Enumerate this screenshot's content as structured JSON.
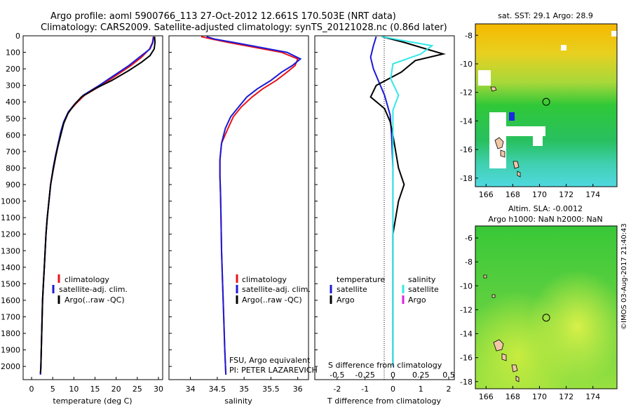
{
  "header": {
    "line1": "Argo profile: aoml 5900766_113 27-Oct-2012 12.661S 170.503E (NRT data)",
    "line2": "Climatology: CARS2009. Satellite-adjusted climatology: synTS_20121028.nc (0.86d later)"
  },
  "colors": {
    "climatology": "#e8141a",
    "satellite": "#1a1ad6",
    "argo": "#000000",
    "sat_salinity": "#33e8e8",
    "argo_salinity": "#e020e0"
  },
  "chart_data": [
    {
      "type": "line",
      "name": "temperature-profile",
      "xlabel": "temperature (deg C)",
      "ylabel": "",
      "xlim": [
        -2,
        31
      ],
      "ylim": [
        2080,
        0
      ],
      "xticks": [
        0,
        5,
        10,
        15,
        20,
        25,
        30
      ],
      "yticks": [
        0,
        100,
        200,
        300,
        400,
        500,
        600,
        700,
        800,
        900,
        1000,
        1100,
        1200,
        1300,
        1400,
        1500,
        1600,
        1700,
        1800,
        1900,
        2000
      ],
      "legend": [
        "climatology",
        "satellite-adj. clim.",
        "Argo(..raw -QC)"
      ],
      "series": [
        {
          "name": "climatology",
          "color": "#e8141a",
          "points": [
            [
              28.8,
              5
            ],
            [
              28.6,
              40
            ],
            [
              27.9,
              80
            ],
            [
              26,
              130
            ],
            [
              23.5,
              180
            ],
            [
              20,
              240
            ],
            [
              16.5,
              300
            ],
            [
              12.5,
              360
            ],
            [
              10.5,
              410
            ],
            [
              8.8,
              460
            ],
            [
              7.7,
              520
            ],
            [
              7,
              580
            ],
            [
              6.3,
              650
            ],
            [
              5.8,
              720
            ],
            [
              5.2,
              800
            ],
            [
              4.5,
              900
            ],
            [
              4.1,
              1000
            ],
            [
              3.7,
              1100
            ],
            [
              3.4,
              1200
            ],
            [
              3.2,
              1300
            ],
            [
              3,
              1400
            ],
            [
              2.8,
              1500
            ],
            [
              2.6,
              1600
            ],
            [
              2.5,
              1700
            ],
            [
              2.4,
              1800
            ],
            [
              2.3,
              1900
            ],
            [
              2.2,
              2000
            ],
            [
              2.1,
              2050
            ]
          ]
        },
        {
          "name": "satellite-adj. clim.",
          "color": "#1a1ad6",
          "points": [
            [
              28.9,
              5
            ],
            [
              28.7,
              40
            ],
            [
              28,
              80
            ],
            [
              25.5,
              130
            ],
            [
              23,
              180
            ],
            [
              19.5,
              240
            ],
            [
              16,
              300
            ],
            [
              12.2,
              360
            ],
            [
              10.3,
              410
            ],
            [
              8.7,
              460
            ],
            [
              7.6,
              520
            ],
            [
              6.9,
              580
            ],
            [
              6.3,
              650
            ],
            [
              5.7,
              720
            ],
            [
              5.1,
              800
            ],
            [
              4.5,
              900
            ],
            [
              4.1,
              1000
            ],
            [
              3.7,
              1100
            ],
            [
              3.4,
              1200
            ],
            [
              3.2,
              1300
            ],
            [
              3,
              1400
            ],
            [
              2.8,
              1500
            ],
            [
              2.6,
              1600
            ],
            [
              2.5,
              1700
            ],
            [
              2.4,
              1800
            ],
            [
              2.3,
              1900
            ],
            [
              2.2,
              2000
            ],
            [
              2.1,
              2050
            ]
          ]
        },
        {
          "name": "Argo(..raw -QC)",
          "color": "#000000",
          "points": [
            [
              29.1,
              5
            ],
            [
              29.2,
              40
            ],
            [
              29,
              80
            ],
            [
              28,
              120
            ],
            [
              26,
              160
            ],
            [
              23,
              210
            ],
            [
              19,
              270
            ],
            [
              15,
              320
            ],
            [
              11.8,
              370
            ],
            [
              10,
              420
            ],
            [
              8.6,
              470
            ],
            [
              7.6,
              530
            ],
            [
              7,
              590
            ],
            [
              6.3,
              660
            ],
            [
              5.7,
              730
            ],
            [
              5.1,
              810
            ],
            [
              4.5,
              900
            ],
            [
              4.1,
              1000
            ],
            [
              3.7,
              1100
            ],
            [
              3.4,
              1200
            ],
            [
              3.2,
              1300
            ],
            [
              3,
              1400
            ],
            [
              2.8,
              1500
            ],
            [
              2.6,
              1600
            ],
            [
              2.5,
              1700
            ],
            [
              2.4,
              1800
            ],
            [
              2.3,
              1900
            ],
            [
              2.2,
              2000
            ],
            [
              2.1,
              2040
            ]
          ]
        }
      ]
    },
    {
      "type": "line",
      "name": "salinity-profile",
      "xlabel": "salinity",
      "xlim": [
        33.6,
        36.2
      ],
      "ylim": [
        2080,
        0
      ],
      "xticks": [
        34,
        34.5,
        35,
        35.5,
        36
      ],
      "legend": [
        "climatology",
        "satellite-adj. clim.",
        "Argo(..raw -QC)"
      ],
      "notes": [
        "FSU, Argo equivalent",
        "PI: PETER LAZAREVICH"
      ],
      "series": [
        {
          "name": "climatology",
          "color": "#e8141a",
          "points": [
            [
              34.2,
              5
            ],
            [
              34.4,
              20
            ],
            [
              34.7,
              40
            ],
            [
              35.2,
              70
            ],
            [
              35.7,
              100
            ],
            [
              36,
              140
            ],
            [
              35.95,
              180
            ],
            [
              35.8,
              220
            ],
            [
              35.6,
              270
            ],
            [
              35.35,
              320
            ],
            [
              35.15,
              370
            ],
            [
              34.95,
              430
            ],
            [
              34.8,
              490
            ],
            [
              34.7,
              560
            ],
            [
              34.58,
              650
            ],
            [
              34.55,
              750
            ],
            [
              34.55,
              850
            ],
            [
              34.56,
              950
            ],
            [
              34.57,
              1100
            ],
            [
              34.58,
              1300
            ],
            [
              34.6,
              1500
            ],
            [
              34.62,
              1700
            ],
            [
              34.64,
              1900
            ],
            [
              34.66,
              2050
            ]
          ]
        },
        {
          "name": "satellite-adj. clim.",
          "color": "#1a1ad6",
          "points": [
            [
              34.3,
              5
            ],
            [
              34.45,
              20
            ],
            [
              34.8,
              40
            ],
            [
              35.3,
              70
            ],
            [
              35.8,
              100
            ],
            [
              36.05,
              140
            ],
            [
              35.9,
              180
            ],
            [
              35.7,
              220
            ],
            [
              35.5,
              270
            ],
            [
              35.25,
              320
            ],
            [
              35.05,
              370
            ],
            [
              34.9,
              430
            ],
            [
              34.75,
              490
            ],
            [
              34.65,
              560
            ],
            [
              34.58,
              650
            ],
            [
              34.55,
              750
            ],
            [
              34.55,
              850
            ],
            [
              34.56,
              950
            ],
            [
              34.57,
              1100
            ],
            [
              34.58,
              1300
            ],
            [
              34.6,
              1500
            ],
            [
              34.62,
              1700
            ],
            [
              34.64,
              1900
            ],
            [
              34.66,
              2050
            ]
          ]
        }
      ]
    },
    {
      "type": "line",
      "name": "difference-profile",
      "xlabel": "T difference from climatology",
      "xlabel_top": "S difference from climatology",
      "xlim_T": [
        -2.8,
        2.2
      ],
      "xticks_T": [
        -2,
        -1,
        0,
        1,
        2
      ],
      "xticks_S": [
        -0.5,
        -0.25,
        0,
        0.25,
        0.5
      ],
      "xtick_labels_S": [
        "-0.5",
        "-0.25",
        "0",
        "0.25",
        "0.5"
      ],
      "ylim": [
        2080,
        0
      ],
      "legend": {
        "temperature_heading": "temperature",
        "salinity_heading": "salinity",
        "items": [
          "satellite",
          "Argo",
          "satellite",
          "Argo"
        ]
      },
      "series": [
        {
          "name": "temperature satellite",
          "color": "#1a1ad6",
          "points": [
            [
              -0.6,
              5
            ],
            [
              -0.7,
              60
            ],
            [
              -0.8,
              130
            ],
            [
              -0.7,
              200
            ],
            [
              -0.5,
              280
            ],
            [
              -0.3,
              360
            ],
            [
              -0.2,
              420
            ],
            [
              -0.1,
              480
            ],
            [
              -0.05,
              600
            ],
            [
              0,
              800
            ],
            [
              0,
              1200
            ],
            [
              0,
              1600
            ],
            [
              0,
              2000
            ]
          ]
        },
        {
          "name": "temperature Argo",
          "color": "#000000",
          "points": [
            [
              -0.4,
              5
            ],
            [
              0.4,
              40
            ],
            [
              1,
              70
            ],
            [
              1.8,
              110
            ],
            [
              0.8,
              150
            ],
            [
              0.3,
              220
            ],
            [
              -0.6,
              300
            ],
            [
              -0.8,
              370
            ],
            [
              -0.3,
              440
            ],
            [
              -0.1,
              520
            ],
            [
              0,
              600
            ],
            [
              0.1,
              700
            ],
            [
              0.2,
              800
            ],
            [
              0.4,
              900
            ],
            [
              0.2,
              1000
            ],
            [
              0,
              1200
            ],
            [
              0,
              1600
            ],
            [
              0,
              2000
            ]
          ]
        },
        {
          "name": "salinity satellite",
          "color": "#33e8e8",
          "points": [
            [
              -0.1,
              5
            ],
            [
              0.1,
              30
            ],
            [
              0.35,
              60
            ],
            [
              0.25,
              110
            ],
            [
              0,
              170
            ],
            [
              -0.02,
              260
            ],
            [
              0.05,
              360
            ],
            [
              0.0,
              450
            ],
            [
              0,
              600
            ],
            [
              0,
              800
            ],
            [
              0,
              1200
            ],
            [
              0,
              1600
            ],
            [
              0,
              2000
            ]
          ]
        },
        {
          "name": "salinity Argo",
          "color": "#e020e0",
          "points": []
        }
      ]
    },
    {
      "type": "heatmap",
      "name": "sst-map",
      "title": "sat. SST: 29.1  Argo: 28.9",
      "xticks": [
        166,
        168,
        170,
        172,
        174
      ],
      "yticks": [
        -8,
        -10,
        -12,
        -14,
        -16,
        -18
      ],
      "xlim": [
        165.2,
        175.8
      ],
      "ylim": [
        -18.6,
        -7.2
      ],
      "marker": {
        "lon": 170.503,
        "lat": -12.661
      }
    },
    {
      "type": "heatmap",
      "name": "sla-map",
      "title_line1": "Altim. SLA: -0.0012",
      "title_line2": "Argo h1000: NaN h2000: NaN",
      "xticks": [
        166,
        168,
        170,
        172,
        174
      ],
      "yticks": [
        -6,
        -8,
        -10,
        -12,
        -14,
        -16,
        -18
      ],
      "xlim": [
        165.2,
        175.8
      ],
      "ylim": [
        -18.6,
        -5
      ],
      "marker": {
        "lon": 170.503,
        "lat": -12.661
      }
    }
  ],
  "stamp": "©IMOS 03-Aug-2017 21:40:43"
}
